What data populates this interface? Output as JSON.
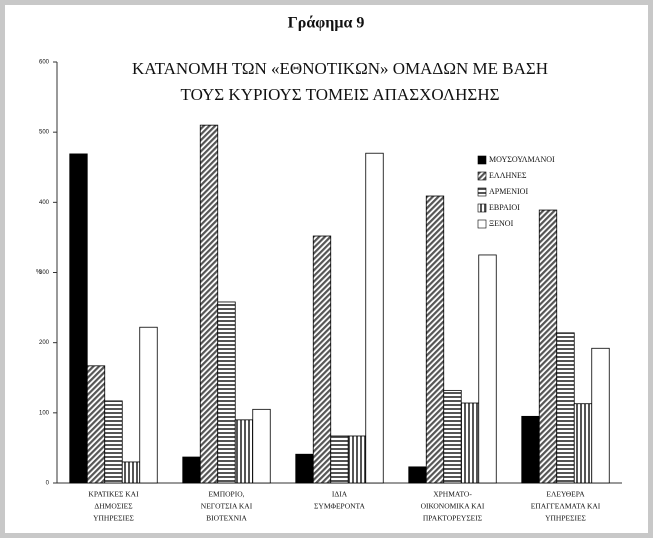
{
  "chart_data": {
    "type": "bar",
    "label": "Γράφημα 9",
    "title": [
      "ΚΑΤΑΝΟΜΗ ΤΩΝ «ΕΘΝΟΤΙΚΩΝ» ΟΜΑΔΩΝ ΜΕ ΒΑΣΗ",
      "ΤΟΥΣ ΚΥΡΙΟΥΣ ΤΟΜΕΙΣ ΑΠΑΣΧΟΛΗΣΗΣ"
    ],
    "ylabel": "%",
    "categories": [
      [
        "ΚΡΑΤΙΚΕΣ ΚΑΙ",
        "ΔΗΜΟΣΙΕΣ",
        "ΥΠΗΡΕΣΙΕΣ"
      ],
      [
        "ΕΜΠΟΡΙΟ,",
        "ΝΕΓΟΤΣΙΑ ΚΑΙ",
        "ΒΙΟΤΕΧΝΙΑ"
      ],
      [
        "ΙΔΙΑ",
        "ΣΥΜΦΕΡΟΝΤΑ"
      ],
      [
        "ΧΡΗΜΑΤΟ-",
        "ΟΙΚΟΝΟΜΙΚΑ ΚΑΙ",
        "ΠΡΑΚΤΟΡΕΥΣΕΙΣ"
      ],
      [
        "ΕΛΕΥΘΕΡΑ",
        "ΕΠΑΓΓΕΛΜΑΤΑ ΚΑΙ",
        "ΥΠΗΡΕΣΙΕΣ"
      ]
    ],
    "series": [
      {
        "name": "ΜΟΥΣΟΥΛΜΑΝΟΙ",
        "color": "#000000",
        "pattern": "solid",
        "values": [
          469,
          37,
          41,
          23,
          95
        ]
      },
      {
        "name": "ΕΛΛΗΝΕΣ",
        "color": "#555555",
        "pattern": "diagonal",
        "values": [
          167,
          510,
          352,
          409,
          389
        ]
      },
      {
        "name": "ΑΡΜΕΝΙΟΙ",
        "color": "#555555",
        "pattern": "horizontal",
        "values": [
          117,
          258,
          67,
          132,
          214
        ]
      },
      {
        "name": "ΕΒΡΑΙΟΙ",
        "color": "#555555",
        "pattern": "vertical",
        "values": [
          30,
          90,
          67,
          114,
          113
        ]
      },
      {
        "name": "ΞΕΝΟΙ",
        "color": "#ffffff",
        "pattern": "solid",
        "values": [
          222,
          105,
          470,
          325,
          192
        ]
      }
    ],
    "ylim": [
      0,
      600
    ],
    "yticks": [
      0,
      100,
      200,
      300,
      400,
      500,
      600
    ]
  }
}
